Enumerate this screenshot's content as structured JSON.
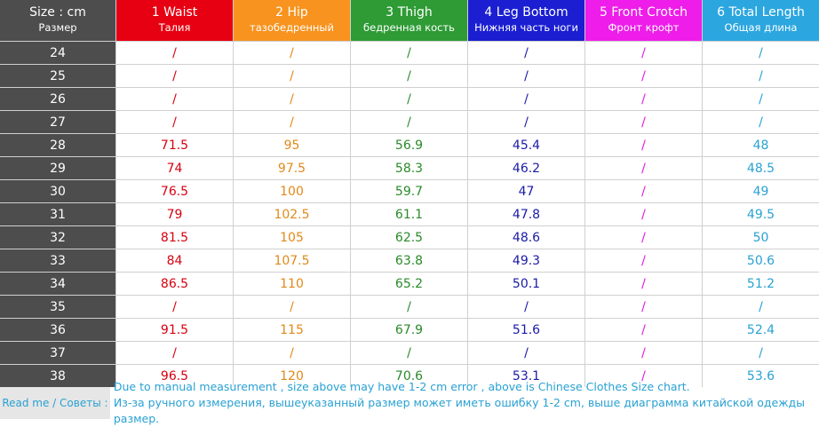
{
  "header": {
    "size_label": "Size : cm",
    "size_sub": "Размер",
    "columns": [
      {
        "title": "1 Waist",
        "subtitle": "Талия"
      },
      {
        "title": "2 Hip",
        "subtitle": "тазобедренный"
      },
      {
        "title": "3 Thigh",
        "subtitle": "бедренная кость"
      },
      {
        "title": "4 Leg Bottom",
        "subtitle": "Нижняя часть ноги"
      },
      {
        "title": "5 Front Crotch",
        "subtitle": "Фронт крофт"
      },
      {
        "title": "6 Total Length",
        "subtitle": "Общая длина"
      }
    ]
  },
  "table": {
    "rows": [
      [
        24,
        "/",
        "/",
        "/",
        "/",
        "/",
        "/"
      ],
      [
        25,
        "/",
        "/",
        "/",
        "/",
        "/",
        "/"
      ],
      [
        26,
        "/",
        "/",
        "/",
        "/",
        "/",
        "/"
      ],
      [
        27,
        "/",
        "/",
        "/",
        "/",
        "/",
        "/"
      ],
      [
        28,
        71.5,
        95,
        56.9,
        45.4,
        "/",
        48
      ],
      [
        29,
        74,
        97.5,
        58.3,
        46.2,
        "/",
        48.5
      ],
      [
        30,
        76.5,
        100,
        59.7,
        47,
        "/",
        49
      ],
      [
        31,
        79,
        102.5,
        61.1,
        47.8,
        "/",
        49.5
      ],
      [
        32,
        81.5,
        105,
        62.5,
        48.6,
        "/",
        50
      ],
      [
        33,
        84,
        107.5,
        63.8,
        49.3,
        "/",
        50.6
      ],
      [
        34,
        86.5,
        110,
        65.2,
        50.1,
        "/",
        51.2
      ],
      [
        35,
        "/",
        "/",
        "/",
        "/",
        "/",
        "/"
      ],
      [
        36,
        91.5,
        115,
        67.9,
        51.6,
        "/",
        52.4
      ],
      [
        37,
        "/",
        "/",
        "/",
        "/",
        "/",
        "/"
      ],
      [
        38,
        96.5,
        120,
        70.6,
        53.1,
        "/",
        53.6
      ]
    ]
  },
  "footer": {
    "label": "Read me / Советы :",
    "lines": [
      "Due to manual measurement , size above may have 1-2 cm error , above is Chinese Clothes Size chart.",
      "Из-за ручного измерения, вышеуказанный размер может иметь ошибку 1-2 cm, выше диаграмма китайской одежды размер."
    ]
  }
}
